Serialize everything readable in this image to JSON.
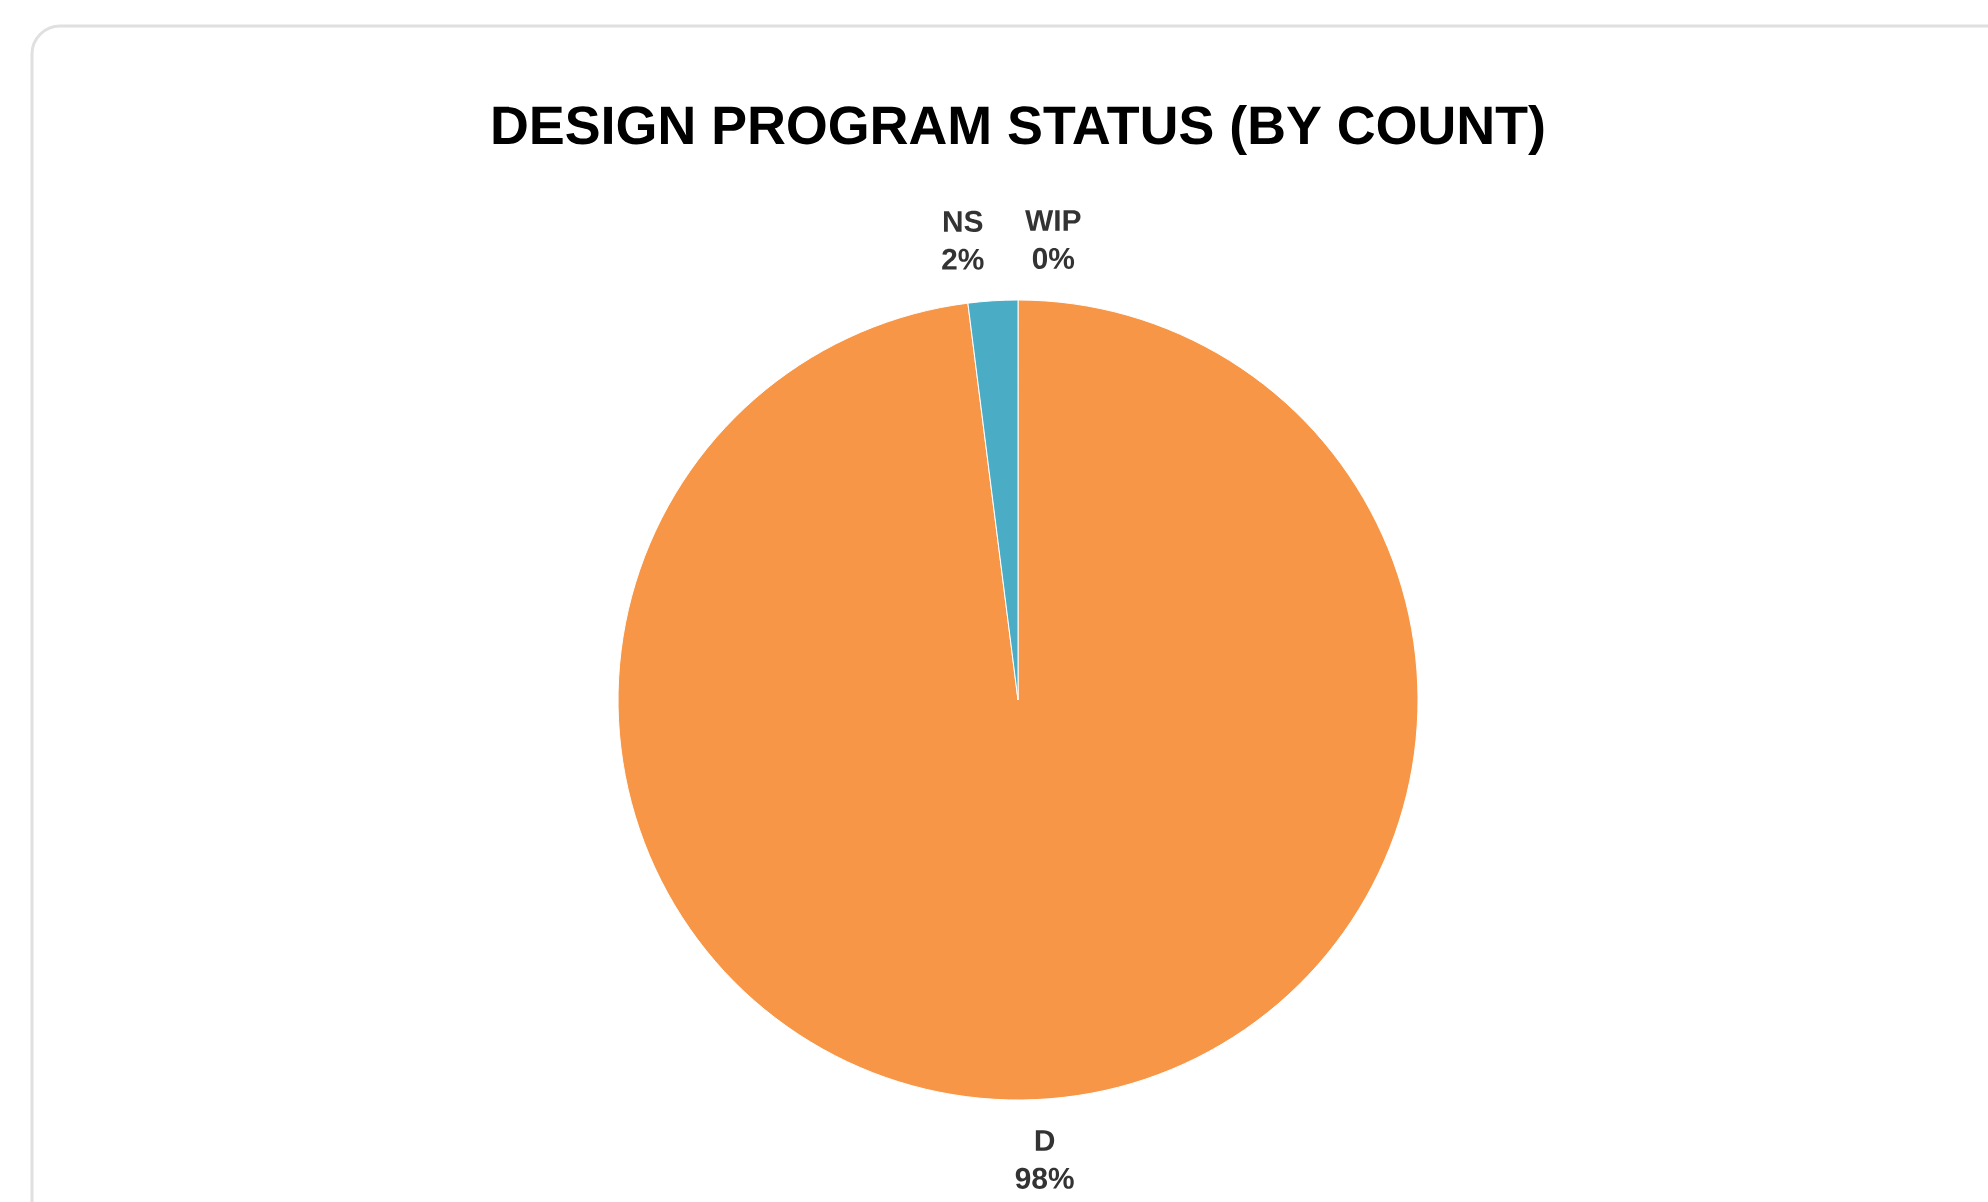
{
  "chart_data": {
    "type": "pie",
    "title": "DESIGN PROGRAM STATUS (BY COUNT)",
    "categories": [
      "D",
      "NS",
      "WIP"
    ],
    "values": [
      98,
      2,
      0
    ],
    "value_labels": [
      "98%",
      "2%",
      "0%"
    ],
    "colors": [
      "#f79646",
      "#4bacc6",
      "#9bbb59"
    ]
  }
}
